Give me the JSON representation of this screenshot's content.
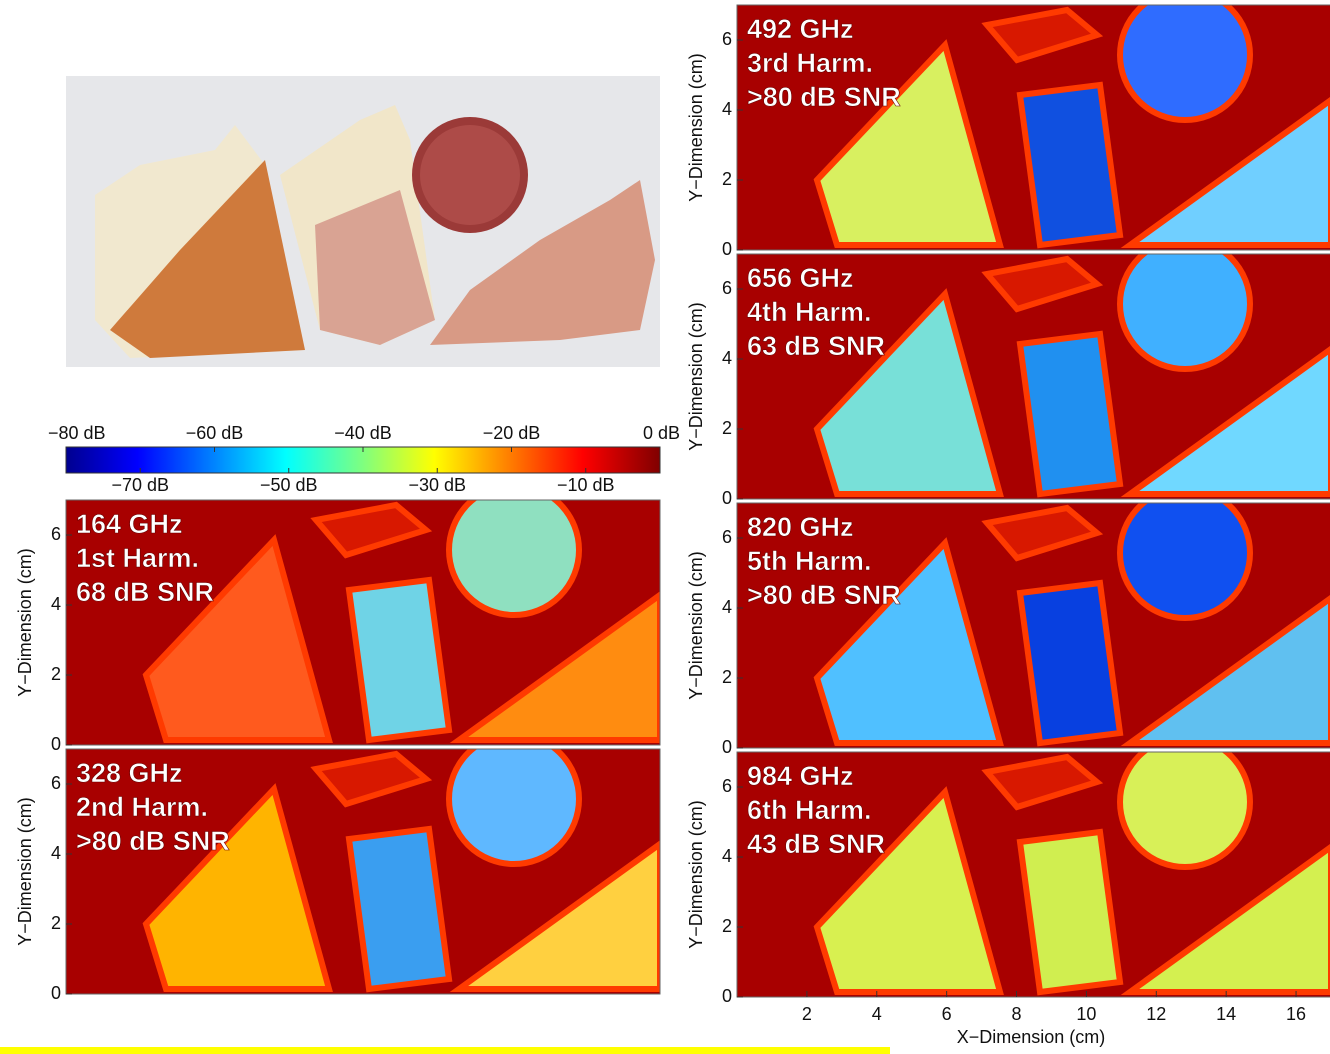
{
  "colorbar": {
    "range": [
      -80,
      0
    ],
    "top_ticks": [
      {
        "value": -80,
        "label": "−80 dB"
      },
      {
        "value": -60,
        "label": "−60 dB"
      },
      {
        "value": -40,
        "label": "−40 dB"
      },
      {
        "value": -20,
        "label": "−20 dB"
      },
      {
        "value": 0,
        "label": "0 dB"
      }
    ],
    "bottom_ticks": [
      {
        "value": -70,
        "label": "−70 dB"
      },
      {
        "value": -50,
        "label": "−50 dB"
      },
      {
        "value": -30,
        "label": "−30 dB"
      },
      {
        "value": -10,
        "label": "−10 dB"
      }
    ]
  },
  "y_axis": {
    "label": "Y−Dimension (cm)",
    "ylim": [
      0,
      7
    ],
    "yticks": [
      0,
      2,
      4,
      6
    ]
  },
  "x_axis": {
    "label": "X−Dimension (cm)",
    "xlim": [
      0,
      17
    ],
    "xticks": [
      2,
      4,
      6,
      8,
      10,
      12,
      14,
      16
    ]
  },
  "panels": [
    {
      "lines": [
        "164 GHz",
        "1st Harm.",
        "68 dB SNR"
      ]
    },
    {
      "lines": [
        "328 GHz",
        "2nd Harm.",
        ">80 dB SNR"
      ]
    },
    {
      "lines": [
        "492 GHz",
        "3rd Harm.",
        ">80 dB SNR"
      ]
    },
    {
      "lines": [
        "656 GHz",
        "4th Harm.",
        "63 dB SNR"
      ]
    },
    {
      "lines": [
        "820 GHz",
        "5th Harm.",
        ">80 dB SNR"
      ]
    },
    {
      "lines": [
        "984 GHz",
        "6th Harm.",
        "43 dB SNR"
      ]
    }
  ]
}
